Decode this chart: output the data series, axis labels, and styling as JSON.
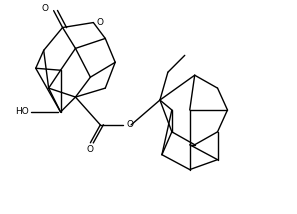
{
  "background": "#ffffff",
  "linewidth": 1.0,
  "linecolor": "#000000",
  "fontsize": 6.5,
  "figsize": [
    2.97,
    2.14
  ],
  "dpi": 100,
  "xlim": [
    0,
    297
  ],
  "ylim": [
    0,
    214
  ]
}
